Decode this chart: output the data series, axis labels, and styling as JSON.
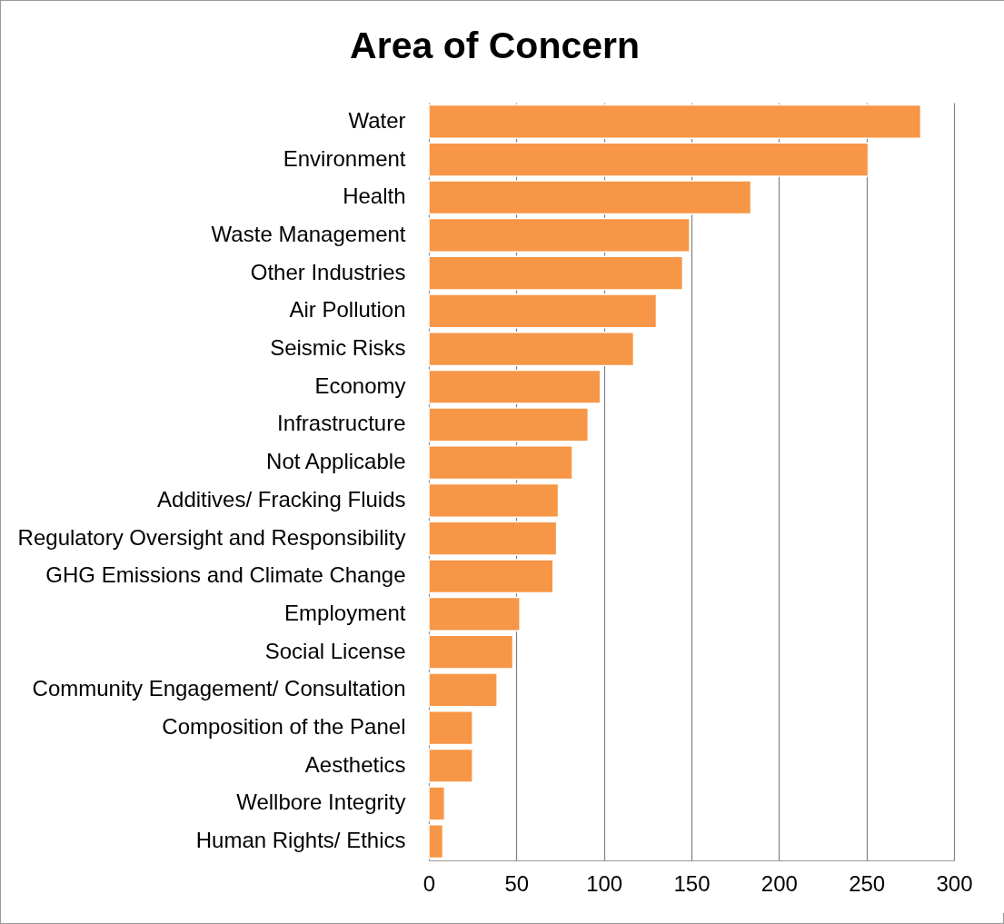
{
  "chart_data": {
    "type": "bar",
    "orientation": "horizontal",
    "title": "Area of Concern",
    "categories": [
      "Water",
      "Environment",
      "Health",
      "Waste Management",
      "Other Industries",
      "Air Pollution",
      "Seismic Risks",
      "Economy",
      "Infrastructure",
      "Not Applicable",
      "Additives/ Fracking Fluids",
      "Regulatory Oversight and Responsibility",
      "GHG Emissions and Climate Change",
      "Employment",
      "Social License",
      "Community Engagement/ Consultation",
      "Composition of the Panel",
      "Aesthetics",
      "Wellbore Integrity",
      "Human Rights/ Ethics"
    ],
    "values": [
      281,
      251,
      184,
      149,
      145,
      130,
      117,
      98,
      91,
      82,
      74,
      73,
      71,
      52,
      48,
      39,
      25,
      25,
      9,
      8
    ],
    "color": "#f79646",
    "xlim": [
      0,
      300
    ],
    "xticks": [
      0,
      50,
      100,
      150,
      200,
      250,
      300
    ],
    "grid": "x"
  }
}
